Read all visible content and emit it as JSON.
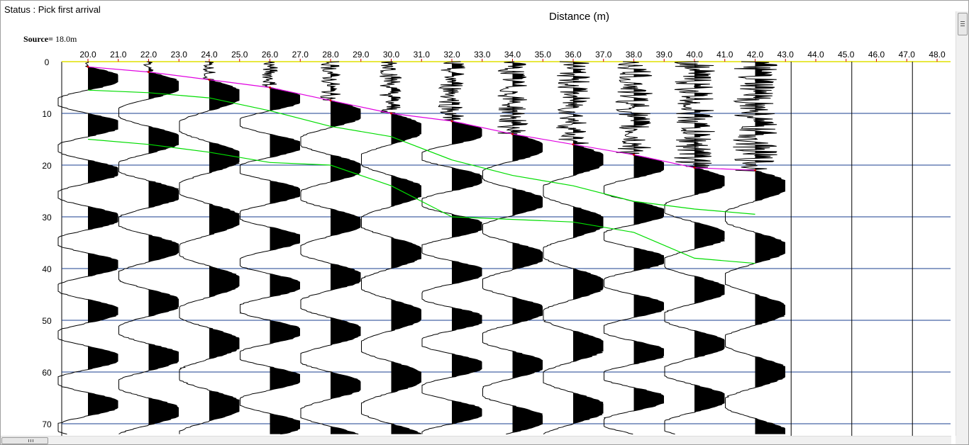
{
  "status": {
    "label": "Status : Pick first arrival"
  },
  "chart_title": "Distance (m)",
  "source": {
    "label": "Source=",
    "value": "18.0m"
  },
  "chart_data": {
    "type": "line",
    "title": "Distance (m)",
    "x_ticks": [
      "20.0",
      "21.0",
      "22.0",
      "23.0",
      "24.0",
      "25.0",
      "26.0",
      "27.0",
      "28.0",
      "29.0",
      "30.0",
      "31.0",
      "32.0",
      "33.0",
      "34.0",
      "35.0",
      "36.0",
      "37.0",
      "38.0",
      "39.0",
      "40.0",
      "41.0",
      "42.0",
      "43.0",
      "44.0",
      "45.0",
      "46.0",
      "47.0",
      "48.0"
    ],
    "y_ticks": [
      "0",
      "10",
      "20",
      "30",
      "40",
      "50",
      "60",
      "70"
    ],
    "xlim": [
      19.2,
      48.8
    ],
    "ylim": [
      0,
      72
    ],
    "grid": "horizontal",
    "trace_distances": [
      20,
      22,
      24,
      26,
      28,
      30,
      32,
      34,
      36,
      38,
      40,
      42
    ],
    "series": [
      {
        "color": "#e000e0",
        "points": [
          [
            20,
            1
          ],
          [
            22,
            2
          ],
          [
            24,
            3.5
          ],
          [
            26,
            5
          ],
          [
            28,
            7.5
          ],
          [
            30,
            10
          ],
          [
            32,
            11.5
          ],
          [
            34,
            14
          ],
          [
            36,
            16
          ],
          [
            38,
            18
          ],
          [
            40,
            20.5
          ],
          [
            42,
            21
          ]
        ]
      },
      {
        "color": "#00dd00",
        "points": [
          [
            20,
            5.5
          ],
          [
            22,
            6
          ],
          [
            24,
            7
          ],
          [
            26,
            9.5
          ],
          [
            28,
            12.5
          ],
          [
            30,
            14.5
          ],
          [
            32,
            19
          ],
          [
            34,
            22
          ],
          [
            36,
            24
          ],
          [
            38,
            27
          ],
          [
            40,
            28.5
          ],
          [
            42,
            29.5
          ]
        ]
      },
      {
        "color": "#00dd00",
        "points": [
          [
            20,
            15
          ],
          [
            22,
            16
          ],
          [
            24,
            17.5
          ],
          [
            26,
            19.5
          ],
          [
            28,
            20
          ],
          [
            30,
            24
          ],
          [
            32,
            30
          ],
          [
            34,
            30.5
          ],
          [
            36,
            31
          ],
          [
            38,
            33
          ],
          [
            40,
            38
          ],
          [
            42,
            39
          ]
        ]
      }
    ]
  },
  "colors": {
    "grid": "#1a3f8f",
    "axis_top": "#e0e000",
    "trace": "#000000",
    "first_break": "#e000e0",
    "phase": "#00dd00"
  },
  "icons": {
    "vertical_scrollbar": "scrollbar-grip-icon",
    "horizontal_scrollbar": "scrollbar-grip-icon"
  }
}
